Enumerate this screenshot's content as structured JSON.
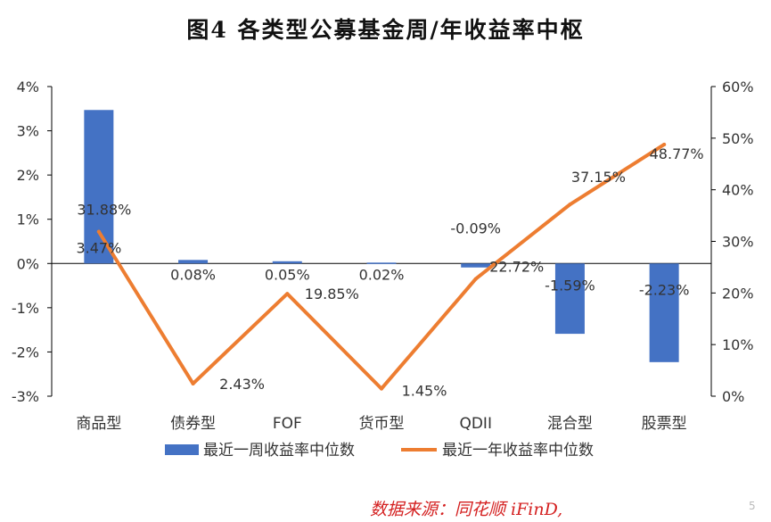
{
  "title": "图4   各类型公募基金周/年收益率中枢",
  "source": "数据来源：同花顺 iFinD,",
  "corner_mark": "5",
  "colors": {
    "bar": "#4472c4",
    "line": "#ed7d31",
    "axis": "#000000",
    "text": "#333333"
  },
  "chart_data": {
    "type": "bar",
    "categories": [
      "商品型",
      "债券型",
      "FOF",
      "货币型",
      "QDII",
      "混合型",
      "股票型"
    ],
    "series": [
      {
        "name": "最近一周收益率中位数",
        "type": "bar",
        "axis": "left",
        "values": [
          3.47,
          0.08,
          0.05,
          0.02,
          -0.09,
          -1.59,
          -2.23
        ],
        "labels": [
          "3.47%",
          "0.08%",
          "0.05%",
          "0.02%",
          "-0.09%",
          "-1.59%",
          "-2.23%"
        ]
      },
      {
        "name": "最近一年收益率中位数",
        "type": "line",
        "axis": "right",
        "values": [
          31.88,
          2.43,
          19.85,
          1.45,
          22.72,
          37.15,
          48.77
        ],
        "labels": [
          "31.88%",
          "2.43%",
          "19.85%",
          "1.45%",
          "22.72%",
          "37.15%",
          "48.77%"
        ]
      }
    ],
    "y_left": {
      "min": -3,
      "max": 4,
      "ticks": [
        "-3%",
        "-2%",
        "-1%",
        "0%",
        "1%",
        "2%",
        "3%",
        "4%"
      ]
    },
    "y_right": {
      "min": 0,
      "max": 60,
      "ticks": [
        "0%",
        "10%",
        "20%",
        "30%",
        "40%",
        "50%",
        "60%"
      ]
    },
    "legend_position": "bottom",
    "grid": false
  }
}
